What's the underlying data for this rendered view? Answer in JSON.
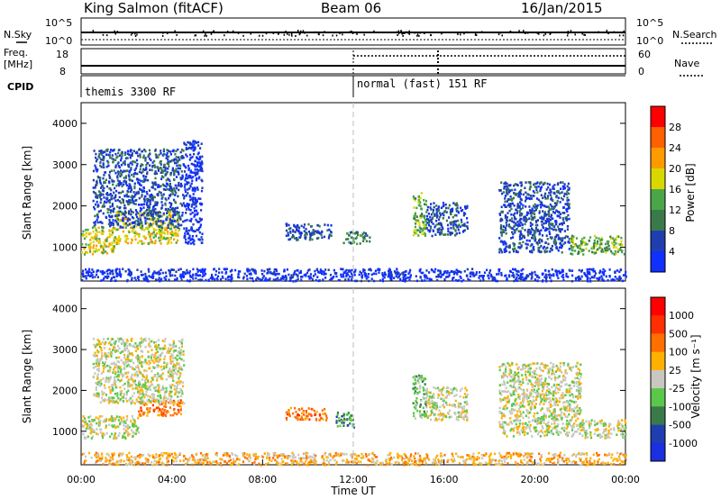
{
  "header": {
    "station": "King Salmon (fitACF)",
    "beam": "Beam 06",
    "date": "16/Jan/2015"
  },
  "status_panels": {
    "nsky_label": "N.Sky",
    "nsky_ticks": [
      "10^5",
      "10^0"
    ],
    "nsearch_label": "N.Search",
    "nsearch_ticks": [
      "10^5",
      "10^0"
    ],
    "freq_label_1": "Freq.",
    "freq_label_2": "[MHz]",
    "freq_ticks": [
      "18",
      "8"
    ],
    "nave_label": "Nave",
    "nave_ticks": [
      "60",
      "0"
    ],
    "cpid_label": "CPID",
    "cpid_modes": [
      {
        "text": "themis 3300 RF",
        "start_hour": 0
      },
      {
        "text": "normal (fast) 151 RF",
        "start_hour": 12
      }
    ]
  },
  "chart_data": [
    {
      "type": "heatmap",
      "name": "power",
      "xlabel": "",
      "ylabel": "Slant Range [km]",
      "xlim": [
        0,
        24
      ],
      "ylim": [
        180,
        4500
      ],
      "yticks": [
        "1000",
        "2000",
        "3000",
        "4000"
      ],
      "colorbar_label": "Power [dB]",
      "colorbar_ticks": [
        "4",
        "8",
        "12",
        "16",
        "20",
        "24",
        "28"
      ],
      "colors": [
        "#1030ff",
        "#1f3fb0",
        "#3a7a4a",
        "#4aa648",
        "#d8d800",
        "#ff9a00",
        "#ff6000",
        "#ff0000"
      ],
      "regions": [
        {
          "t0": 0.0,
          "t1": 1.5,
          "r0": 850,
          "r1": 1500,
          "level": 4
        },
        {
          "t0": 1.5,
          "t1": 4.3,
          "r0": 1100,
          "r1": 1900,
          "level": 4
        },
        {
          "t0": 0.5,
          "t1": 4.5,
          "r0": 1500,
          "r1": 3400,
          "level": 1
        },
        {
          "t0": 4.5,
          "t1": 5.3,
          "r0": 1100,
          "r1": 3600,
          "level": 0
        },
        {
          "t0": 9.0,
          "t1": 11.0,
          "r0": 1200,
          "r1": 1600,
          "level": 1
        },
        {
          "t0": 11.5,
          "t1": 12.7,
          "r0": 1100,
          "r1": 1400,
          "level": 2
        },
        {
          "t0": 14.6,
          "t1": 15.2,
          "r0": 1300,
          "r1": 2400,
          "level": 3
        },
        {
          "t0": 15.2,
          "t1": 17.0,
          "r0": 1300,
          "r1": 2100,
          "level": 1
        },
        {
          "t0": 18.4,
          "t1": 21.5,
          "r0": 900,
          "r1": 2600,
          "level": 1
        },
        {
          "t0": 21.5,
          "t1": 24.0,
          "r0": 850,
          "r1": 1300,
          "level": 3
        },
        {
          "t0": 0.0,
          "t1": 24.0,
          "r0": 200,
          "r1": 500,
          "level": 0
        }
      ]
    },
    {
      "type": "heatmap",
      "name": "velocity",
      "xlabel": "Time UT",
      "ylabel": "Slant Range [km]",
      "xlim": [
        0,
        24
      ],
      "ylim": [
        180,
        4500
      ],
      "xticks": [
        "00:00",
        "04:00",
        "08:00",
        "12:00",
        "16:00",
        "20:00",
        "00:00"
      ],
      "yticks": [
        "1000",
        "2000",
        "3000",
        "4000"
      ],
      "colorbar_label": "Velocity [m s⁻¹]",
      "colorbar_ticks": [
        "1000",
        "500",
        "100",
        "25",
        "-25",
        "-100",
        "-500",
        "-1000"
      ],
      "colors": [
        "#1a2fe0",
        "#1f3fb0",
        "#3a7a4a",
        "#5bc84a",
        "#c8c8c0",
        "#ffb000",
        "#ff7000",
        "#ff3000",
        "#ff0000"
      ],
      "regions": [
        {
          "t0": 0.0,
          "t1": 2.5,
          "r0": 850,
          "r1": 1400,
          "level": 4
        },
        {
          "t0": 2.5,
          "t1": 4.4,
          "r0": 1400,
          "r1": 1800,
          "level": 6
        },
        {
          "t0": 0.5,
          "t1": 4.5,
          "r0": 1700,
          "r1": 3300,
          "level": 4
        },
        {
          "t0": 9.0,
          "t1": 10.8,
          "r0": 1300,
          "r1": 1600,
          "level": 6
        },
        {
          "t0": 11.2,
          "t1": 12.0,
          "r0": 1100,
          "r1": 1500,
          "level": 2
        },
        {
          "t0": 14.6,
          "t1": 15.2,
          "r0": 1300,
          "r1": 2400,
          "level": 3
        },
        {
          "t0": 15.2,
          "t1": 17.0,
          "r0": 1300,
          "r1": 2100,
          "level": 4
        },
        {
          "t0": 18.4,
          "t1": 22.0,
          "r0": 900,
          "r1": 2700,
          "level": 4
        },
        {
          "t0": 22.0,
          "t1": 24.0,
          "r0": 850,
          "r1": 1300,
          "level": 4
        },
        {
          "t0": 0.0,
          "t1": 24.0,
          "r0": 200,
          "r1": 500,
          "level": 5
        }
      ]
    }
  ]
}
